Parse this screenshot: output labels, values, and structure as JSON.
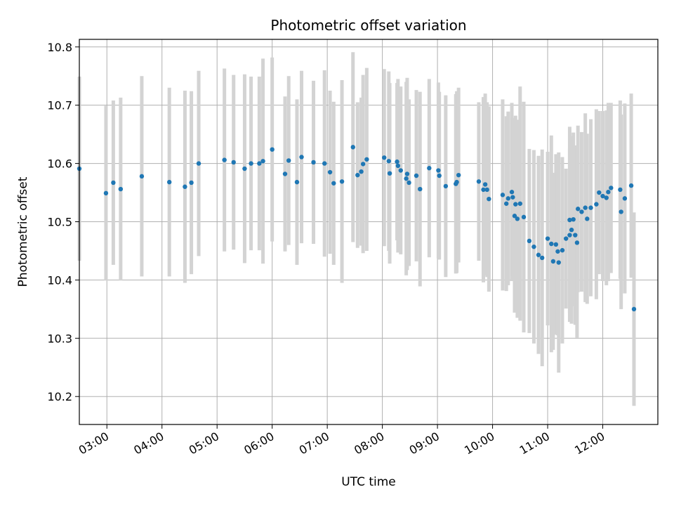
{
  "chart_data": {
    "type": "scatter",
    "title": "Photometric offset variation",
    "xlabel": "UTC time",
    "ylabel": "Photometric offset",
    "x_ticks": [
      "03:00",
      "04:00",
      "05:00",
      "06:00",
      "07:00",
      "08:00",
      "09:00",
      "10:00",
      "11:00",
      "12:00"
    ],
    "y_ticks": [
      "10.2",
      "10.3",
      "10.4",
      "10.5",
      "10.6",
      "10.7",
      "10.8"
    ],
    "xlim": [
      "02:30",
      "13:00"
    ],
    "ylim": [
      10.152,
      10.813
    ],
    "grid": true,
    "colors": {
      "points": "#1f77b4",
      "error_bars": "#d3d3d3",
      "grid": "#b0b0b0"
    },
    "series": [
      {
        "x": [
          "02:30",
          "02:59",
          "03:07",
          "03:15",
          "03:38",
          "04:08",
          "04:25",
          "04:32",
          "04:40",
          "05:08",
          "05:18",
          "05:30",
          "05:37",
          "05:46",
          "05:50",
          "06:00",
          "06:14",
          "06:18",
          "06:27",
          "06:32",
          "06:45",
          "06:57",
          "07:03",
          "07:07",
          "07:16",
          "07:28",
          "07:33",
          "07:37",
          "07:39",
          "07:43",
          "08:02",
          "08:07",
          "08:08",
          "08:16",
          "08:17",
          "08:20",
          "08:26",
          "08:27",
          "08:29",
          "08:37",
          "08:41",
          "08:51",
          "09:01",
          "09:02",
          "09:09",
          "09:20",
          "09:21",
          "09:23",
          "09:45",
          "09:50",
          "09:52",
          "09:54",
          "09:56",
          "10:11",
          "10:15",
          "10:17",
          "10:21",
          "10:22",
          "10:24",
          "10:25",
          "10:27",
          "10:30",
          "10:34",
          "10:40",
          "10:45",
          "10:50",
          "10:54",
          "11:00",
          "11:04",
          "11:06",
          "11:09",
          "11:11",
          "11:12",
          "11:16",
          "11:20",
          "11:24",
          "11:24",
          "11:26",
          "11:28",
          "11:30",
          "11:32",
          "11:33",
          "11:37",
          "11:41",
          "11:43",
          "11:47",
          "11:53",
          "11:56",
          "12:00",
          "12:04",
          "12:06",
          "12:09",
          "12:19",
          "12:20",
          "12:24",
          "12:31",
          "12:34"
        ],
        "y": [
          10.591,
          10.549,
          10.567,
          10.556,
          10.578,
          10.568,
          10.56,
          10.567,
          10.6,
          10.606,
          10.602,
          10.591,
          10.6,
          10.6,
          10.604,
          10.624,
          10.582,
          10.605,
          10.568,
          10.611,
          10.602,
          10.6,
          10.585,
          10.566,
          10.569,
          10.628,
          10.58,
          10.586,
          10.599,
          10.607,
          10.61,
          10.604,
          10.583,
          10.603,
          10.596,
          10.588,
          10.574,
          10.582,
          10.567,
          10.579,
          10.556,
          10.592,
          10.588,
          10.579,
          10.561,
          10.565,
          10.568,
          10.58,
          10.569,
          10.555,
          10.564,
          10.555,
          10.539,
          10.546,
          10.531,
          10.54,
          10.551,
          10.542,
          10.51,
          10.53,
          10.505,
          10.531,
          10.508,
          10.467,
          10.457,
          10.443,
          10.438,
          10.471,
          10.462,
          10.432,
          10.461,
          10.449,
          10.43,
          10.451,
          10.471,
          10.477,
          10.503,
          10.486,
          10.504,
          10.477,
          10.464,
          10.522,
          10.517,
          10.524,
          10.505,
          10.524,
          10.53,
          10.55,
          10.544,
          10.541,
          10.551,
          10.558,
          10.555,
          10.517,
          10.54,
          10.562,
          10.35
        ],
        "yerr": [
          0.158,
          0.15,
          0.141,
          0.157,
          0.172,
          0.162,
          0.165,
          0.157,
          0.159,
          0.157,
          0.15,
          0.162,
          0.149,
          0.149,
          0.176,
          0.158,
          0.133,
          0.145,
          0.142,
          0.148,
          0.14,
          0.16,
          0.14,
          0.14,
          0.174,
          0.163,
          0.125,
          0.127,
          0.153,
          0.157,
          0.152,
          0.154,
          0.155,
          0.135,
          0.149,
          0.144,
          0.166,
          0.165,
          0.143,
          0.147,
          0.167,
          0.153,
          0.151,
          0.144,
          0.156,
          0.154,
          0.156,
          0.15,
          0.136,
          0.159,
          0.156,
          0.15,
          0.159,
          0.164,
          0.15,
          0.149,
          0.153,
          0.136,
          0.166,
          0.152,
          0.17,
          0.201,
          0.198,
          0.158,
          0.166,
          0.17,
          0.186,
          0.149,
          0.186,
          0.152,
          0.155,
          0.144,
          0.189,
          0.16,
          0.12,
          0.149,
          0.16,
          0.161,
          0.149,
          0.154,
          0.163,
          0.143,
          0.137,
          0.162,
          0.146,
          0.152,
          0.163,
          0.14,
          0.146,
          0.15,
          0.153,
          0.146,
          0.153,
          0.167,
          0.163,
          0.158,
          0.166
        ]
      }
    ]
  }
}
